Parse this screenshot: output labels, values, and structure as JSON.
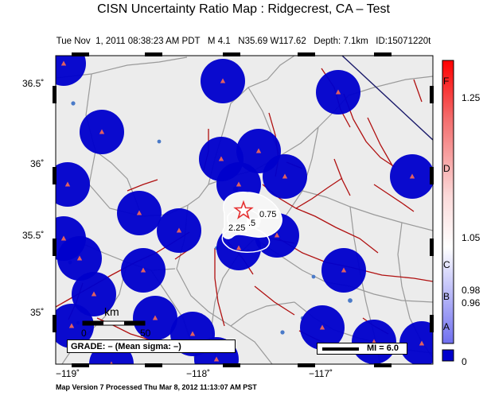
{
  "header": {
    "title": "CISN Uncertainty Ratio Map : Ridgecrest, CA – Test",
    "subtitle": "Tue Nov  1, 2011 08:38:23 AM PDT   M 4.1   N35.69 W117.62   Depth: 7.1km   ID:15071220t"
  },
  "axes": {
    "y_ticks": [
      "36.5˚",
      "36˚",
      "35.5˚",
      "35˚"
    ],
    "x_ticks": [
      "−119˚",
      "−118˚",
      "−117˚"
    ]
  },
  "colorbar": {
    "grade_labels": [
      "F",
      "D",
      "C",
      "B",
      "A"
    ],
    "value_labels": [
      "1.25",
      "1.05",
      "0.98",
      "0.96",
      "0"
    ],
    "colors": {
      "top": "#ff0000",
      "mid": "#ffffff",
      "bottom": "#0000cc"
    }
  },
  "contours": [
    "0.75",
    "2.25",
    ".5"
  ],
  "epicenter": {
    "symbol": "star-icon",
    "color": "#e53030"
  },
  "scale": {
    "unit": "km",
    "start": "0",
    "end": "50"
  },
  "grade_box": {
    "text": "GRADE: – (Mean sigma: –)"
  },
  "magnitude_key": {
    "text": "MI = 6.0"
  },
  "footer": {
    "text": "Map Version 7 Processed Thu Mar  8, 2012 11:13:07 AM PST"
  },
  "colors": {
    "station_halo": "#0000cc",
    "station": "#e06060",
    "fault": "#b01010",
    "road": "#9a9a9a",
    "water": "#4a7ac8",
    "background": "#ececec"
  }
}
